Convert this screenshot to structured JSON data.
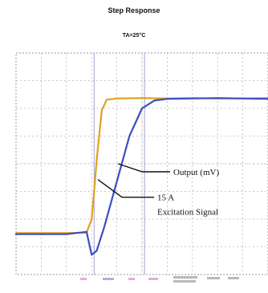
{
  "chart_data": {
    "type": "line",
    "title": "Step Response",
    "subtitle": "TA=25°C",
    "xlabel": "",
    "ylabel": "",
    "grid": true,
    "legend": "none",
    "series": [
      {
        "name": "15 A Excitation Signal",
        "color": "#e0a020",
        "x": [
          0,
          1,
          2,
          2.8,
          3.0,
          3.1,
          3.2,
          3.4,
          3.6,
          4.0,
          5,
          6,
          7,
          8,
          9,
          10
        ],
        "y": [
          0.25,
          0.25,
          0.25,
          0.26,
          0.6,
          1.3,
          2.1,
          3.35,
          3.62,
          3.65,
          3.66,
          3.65,
          3.66,
          3.65,
          3.65,
          3.66
        ]
      },
      {
        "name": "Output (mV)",
        "color": "#3a4fc0",
        "x": [
          0,
          1,
          2,
          2.8,
          3.0,
          3.2,
          3.5,
          4.0,
          4.5,
          5.0,
          5.5,
          6,
          7,
          8,
          9,
          10
        ],
        "y": [
          0.22,
          0.22,
          0.22,
          0.28,
          -0.3,
          -0.2,
          0.4,
          1.55,
          2.7,
          3.4,
          3.6,
          3.64,
          3.65,
          3.66,
          3.65,
          3.64
        ]
      }
    ],
    "annotations": [
      {
        "text": "Output (mV)",
        "target_series": 1
      },
      {
        "text": "15 A",
        "target_series": 0
      },
      {
        "text": "Excitation Signal",
        "target_series": 0
      }
    ],
    "xlim": [
      0,
      10
    ],
    "ylim": [
      -0.8,
      4.8
    ]
  }
}
